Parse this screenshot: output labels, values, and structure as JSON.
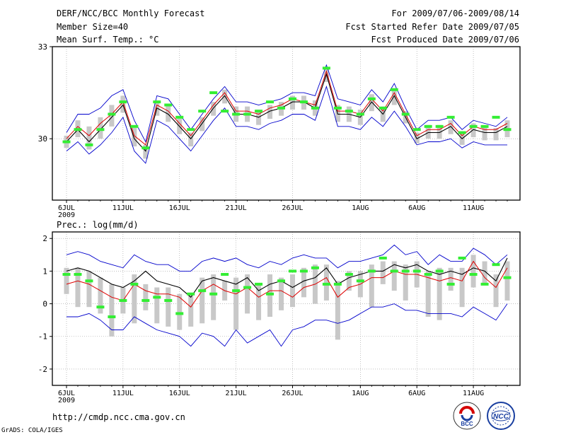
{
  "header": {
    "title": "DERF/NCC/BCC Monthly Forecast",
    "member_size": "Member Size=40",
    "variable": "Mean Surf. Temp.: °C",
    "period": "For 2009/07/06-2009/08/14",
    "started": "Fcst Started Refer Date 2009/07/05",
    "produced": "Fcst Produced Date 2009/07/06"
  },
  "footer": {
    "url": "http://cmdp.ncc.cma.gov.cn",
    "grads": "GrADS: COLA/IGES",
    "logo_bcc": "BCC",
    "logo_ncc": "NCC"
  },
  "colors": {
    "envelope": "#0000cc",
    "ensemble_mean": "#000000",
    "median": "#dd0000",
    "obs": "#33ee33",
    "spread": "#c8c8c8",
    "range": "#e6e6e6"
  },
  "chart_data": [
    {
      "type": "line",
      "title": "Mean Surf. Temp.: °C",
      "x_tick_labels": [
        "6JUL",
        "11JUL",
        "16JUL",
        "21JUL",
        "26JUL",
        "1AUG",
        "6AUG",
        "11AUG"
      ],
      "x_tick_days": [
        0,
        5,
        10,
        15,
        20,
        26,
        31,
        36
      ],
      "year_label": "2009",
      "ylim": [
        28.0,
        33.0
      ],
      "y_ticks": [
        30,
        33
      ],
      "days": 40,
      "series": [
        {
          "name": "ensemble max",
          "values": [
            30.2,
            30.8,
            30.8,
            31.0,
            31.4,
            31.6,
            30.6,
            29.9,
            31.4,
            31.3,
            30.8,
            30.3,
            30.8,
            31.3,
            31.7,
            31.2,
            31.2,
            31.1,
            31.2,
            31.3,
            31.5,
            31.5,
            31.4,
            32.4,
            31.3,
            31.2,
            31.1,
            31.6,
            31.2,
            31.8,
            31.0,
            30.3,
            30.6,
            30.6,
            30.7,
            30.3,
            30.6,
            30.5,
            30.4,
            30.7
          ]
        },
        {
          "name": "ensemble mean",
          "values": [
            29.9,
            30.3,
            29.9,
            30.3,
            30.7,
            31.1,
            30.0,
            29.6,
            31.0,
            30.8,
            30.4,
            30.0,
            30.5,
            31.0,
            31.4,
            30.8,
            30.8,
            30.7,
            30.9,
            31.0,
            31.2,
            31.2,
            31.0,
            32.1,
            30.8,
            30.8,
            30.7,
            31.2,
            30.8,
            31.4,
            30.7,
            30.0,
            30.2,
            30.2,
            30.4,
            30.0,
            30.3,
            30.2,
            30.2,
            30.4
          ]
        },
        {
          "name": "ensemble median",
          "values": [
            30.0,
            30.4,
            30.1,
            30.5,
            30.8,
            31.2,
            30.1,
            29.8,
            31.1,
            30.9,
            30.5,
            30.1,
            30.6,
            31.1,
            31.5,
            30.9,
            30.9,
            30.8,
            31.0,
            31.1,
            31.3,
            31.2,
            31.1,
            32.2,
            30.9,
            30.9,
            30.8,
            31.3,
            30.9,
            31.5,
            30.8,
            30.1,
            30.3,
            30.3,
            30.5,
            30.1,
            30.4,
            30.3,
            30.3,
            30.5
          ]
        },
        {
          "name": "ensemble min",
          "values": [
            29.6,
            29.9,
            29.5,
            29.8,
            30.2,
            30.7,
            29.6,
            29.2,
            30.6,
            30.4,
            30.0,
            29.6,
            30.1,
            30.6,
            31.0,
            30.4,
            30.4,
            30.3,
            30.5,
            30.6,
            30.8,
            30.8,
            30.6,
            31.7,
            30.4,
            30.4,
            30.3,
            30.7,
            30.4,
            30.9,
            30.4,
            29.8,
            29.9,
            29.9,
            30.0,
            29.7,
            29.9,
            29.8,
            29.8,
            29.8
          ]
        },
        {
          "name": "observed",
          "values": [
            29.9,
            30.3,
            29.8,
            30.3,
            30.8,
            31.2,
            30.4,
            29.7,
            31.2,
            31.1,
            30.7,
            30.3,
            30.9,
            31.5,
            30.9,
            30.8,
            30.8,
            30.9,
            31.2,
            31.0,
            31.3,
            31.2,
            31.0,
            32.3,
            31.0,
            30.9,
            30.8,
            31.3,
            31.0,
            31.6,
            30.8,
            30.3,
            30.4,
            30.4,
            30.7,
            30.2,
            30.4,
            30.4,
            30.7,
            30.3
          ]
        }
      ]
    },
    {
      "type": "line",
      "title": "Prec.: log(mm/d)",
      "x_tick_labels": [
        "6JUL",
        "11JUL",
        "16JUL",
        "21JUL",
        "26JUL",
        "1AUG",
        "6AUG",
        "11AUG"
      ],
      "x_tick_days": [
        0,
        5,
        10,
        15,
        20,
        26,
        31,
        36
      ],
      "year_label": "2009",
      "ylim": [
        -2.5,
        2.2
      ],
      "y_ticks": [
        -2,
        -1,
        0,
        1,
        2
      ],
      "days": 40,
      "series": [
        {
          "name": "ensemble max",
          "values": [
            1.5,
            1.6,
            1.5,
            1.3,
            1.2,
            1.1,
            1.5,
            1.3,
            1.2,
            1.2,
            1.0,
            1.0,
            1.3,
            1.4,
            1.3,
            1.4,
            1.2,
            1.1,
            1.3,
            1.2,
            1.4,
            1.5,
            1.4,
            1.4,
            1.1,
            1.3,
            1.3,
            1.4,
            1.5,
            1.8,
            1.5,
            1.6,
            1.2,
            1.5,
            1.3,
            1.3,
            1.7,
            1.5,
            1.2,
            1.5
          ]
        },
        {
          "name": "ensemble mean",
          "values": [
            1.0,
            1.1,
            1.0,
            0.8,
            0.6,
            0.5,
            0.7,
            1.0,
            0.7,
            0.6,
            0.5,
            0.2,
            0.7,
            0.8,
            0.7,
            0.6,
            0.8,
            0.4,
            0.6,
            0.7,
            0.5,
            0.7,
            0.8,
            1.1,
            0.6,
            0.8,
            0.9,
            1.0,
            1.0,
            1.2,
            1.1,
            1.2,
            1.0,
            0.9,
            1.0,
            0.9,
            1.1,
            1.0,
            0.7,
            1.4
          ]
        },
        {
          "name": "ensemble median",
          "values": [
            0.6,
            0.7,
            0.6,
            0.4,
            0.2,
            0.1,
            0.6,
            0.4,
            0.3,
            0.3,
            0.2,
            -0.1,
            0.4,
            0.6,
            0.4,
            0.3,
            0.5,
            0.2,
            0.4,
            0.4,
            0.2,
            0.5,
            0.6,
            0.8,
            0.2,
            0.5,
            0.6,
            0.8,
            0.8,
            1.0,
            0.9,
            0.9,
            0.8,
            0.7,
            0.8,
            0.7,
            1.3,
            0.8,
            0.5,
            1.1
          ]
        },
        {
          "name": "ensemble min",
          "values": [
            -0.4,
            -0.4,
            -0.3,
            -0.5,
            -0.8,
            -0.8,
            -0.4,
            -0.6,
            -0.8,
            -0.9,
            -1.0,
            -1.3,
            -0.9,
            -1.0,
            -1.3,
            -0.8,
            -1.2,
            -1.0,
            -0.8,
            -1.3,
            -0.8,
            -0.7,
            -0.5,
            -0.5,
            -0.6,
            -0.5,
            -0.3,
            -0.1,
            -0.1,
            0.0,
            -0.2,
            -0.2,
            -0.3,
            -0.3,
            -0.3,
            -0.4,
            -0.1,
            -0.3,
            -0.5,
            0.0
          ]
        },
        {
          "name": "observed",
          "values": [
            0.9,
            0.9,
            0.7,
            -0.1,
            -0.4,
            0.1,
            0.6,
            0.1,
            0.2,
            0.1,
            -0.3,
            0.3,
            0.4,
            0.3,
            0.9,
            0.4,
            0.5,
            0.6,
            0.3,
            0.7,
            1.0,
            1.0,
            1.1,
            0.6,
            0.6,
            0.9,
            0.7,
            1.0,
            1.4,
            1.0,
            1.0,
            1.0,
            0.9,
            1.0,
            0.6,
            1.4,
            0.9,
            0.6,
            1.2,
            0.8
          ]
        },
        {
          "name": "spread high",
          "values": [
            1.1,
            1.1,
            1.0,
            0.8,
            0.6,
            0.5,
            0.9,
            0.6,
            0.5,
            0.5,
            0.3,
            0.3,
            0.8,
            0.9,
            0.7,
            0.8,
            0.9,
            0.6,
            0.9,
            0.8,
            0.9,
            1.1,
            1.2,
            1.2,
            0.7,
            1.0,
            1.0,
            1.2,
            1.3,
            1.3,
            1.2,
            1.3,
            1.0,
            1.1,
            1.1,
            1.1,
            1.5,
            1.3,
            0.9,
            1.3
          ]
        },
        {
          "name": "spread low",
          "values": [
            0.3,
            -0.1,
            -0.1,
            -0.3,
            -1.0,
            -0.3,
            -0.6,
            -0.2,
            -0.6,
            -0.7,
            -0.8,
            -0.7,
            -0.6,
            -0.5,
            0.1,
            -0.8,
            -0.3,
            -0.5,
            -0.4,
            -0.2,
            -0.1,
            0.2,
            0.0,
            0.1,
            -1.1,
            0.4,
            0.2,
            -0.1,
            0.6,
            0.4,
            0.1,
            0.5,
            -0.4,
            -0.5,
            0.4,
            -0.1,
            0.5,
            0.6,
            -0.1,
            0.1
          ]
        }
      ]
    }
  ]
}
